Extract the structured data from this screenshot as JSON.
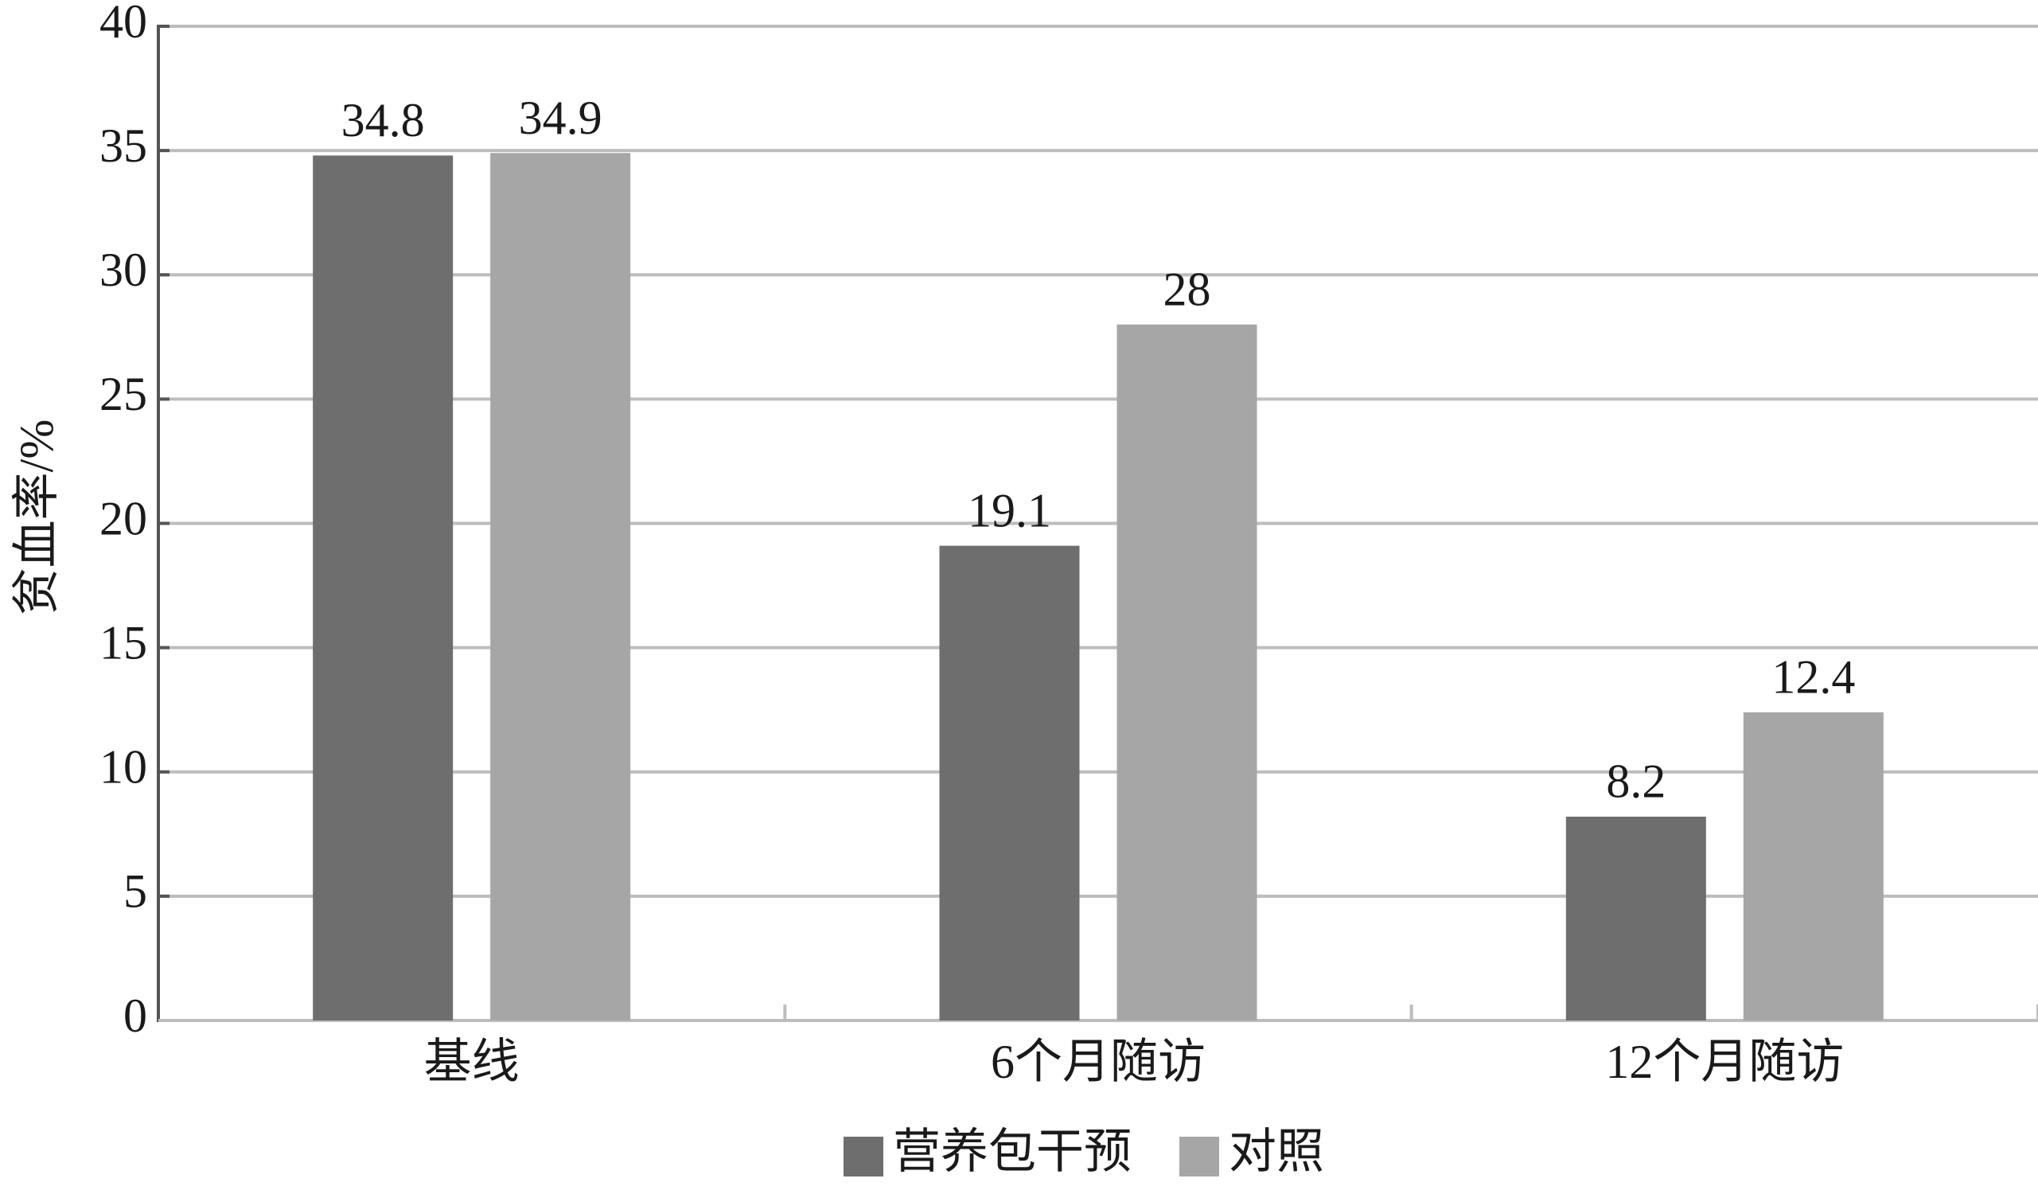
{
  "chart_data": {
    "type": "bar",
    "y_label": "贫血率/%",
    "categories": [
      "基线",
      "6个月随访",
      "12个月随访"
    ],
    "series": [
      {
        "name": "营养包干预",
        "color": "#6e6e6e",
        "values": [
          34.8,
          19.1,
          8.2
        ]
      },
      {
        "name": "对照",
        "color": "#a6a6a6",
        "values": [
          34.9,
          28,
          12.4
        ]
      }
    ],
    "ylim": [
      0,
      40
    ],
    "yticks": [
      0,
      5,
      10,
      15,
      20,
      25,
      30,
      35,
      40
    ],
    "grid": true,
    "legend": "bottom"
  }
}
